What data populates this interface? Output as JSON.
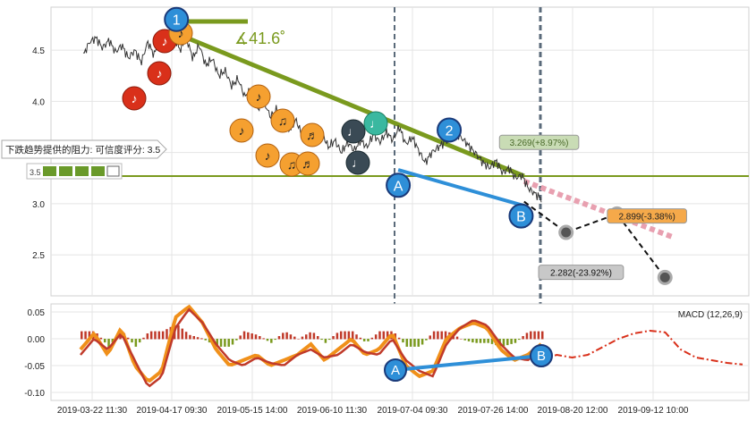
{
  "chart_data": [
    {
      "type": "line",
      "panel": "price",
      "x_ticks": [
        "2019-03-22 11:30",
        "2019-04-17 09:30",
        "2019-05-15 14:00",
        "2019-06-10 11:30",
        "2019-07-04 09:30",
        "2019-07-26 14:00",
        "2019-08-20 12:00",
        "2019-09-12 10:00"
      ],
      "y_ticks": [
        2.5,
        3.0,
        3.5,
        4.0,
        4.5
      ],
      "ylim": [
        2.1,
        4.92
      ],
      "grid": true,
      "series": [
        {
          "values": [
            4.45,
            4.58,
            4.62,
            4.52,
            4.6,
            4.48,
            4.55,
            4.42,
            4.5,
            4.38,
            4.58,
            4.45,
            4.68,
            4.55,
            4.65,
            4.5,
            4.62,
            4.42,
            4.55,
            4.35,
            4.42,
            4.25,
            4.3,
            4.15,
            4.22,
            4.05,
            4.1,
            3.92,
            4.0,
            3.85,
            3.92,
            3.8,
            3.72,
            3.82,
            3.65,
            3.75,
            3.6,
            3.7,
            3.55,
            3.62,
            3.5,
            3.6,
            3.52,
            3.62,
            3.55,
            3.68,
            3.6,
            3.7,
            3.62,
            3.75,
            3.58,
            3.65,
            3.52,
            3.4,
            3.5,
            3.55,
            3.6,
            3.65,
            3.68,
            3.62,
            3.55,
            3.48,
            3.4,
            3.35,
            3.42,
            3.3,
            3.35,
            3.25,
            3.28,
            3.15,
            3.1,
            3.05
          ]
        }
      ],
      "projections": [
        {
          "x": [
            3.3,
            14.8
          ],
          "y": [
            4.65,
            3.27
          ],
          "color": "#7a9a1e"
        },
        {
          "x": [
            10.6,
            14.8
          ],
          "y": [
            3.33,
            2.98
          ],
          "color": "#2e8fd8"
        },
        {
          "x": [
            14.8,
            16.2,
            17.9,
            19.5
          ],
          "y": [
            3.02,
            2.72,
            2.9,
            2.28
          ],
          "color": "#111111"
        },
        {
          "x": [
            14.8,
            19.8
          ],
          "y": [
            3.22,
            2.67
          ],
          "color": "#e8a0b0"
        }
      ],
      "support_level": 3.27,
      "support_label": "下跌趋势提供的阻力: 可信度评分: 3.5",
      "support_rating": "3.5",
      "angle_label": "∡41.6˚",
      "wave_labels": [
        {
          "text": "1",
          "x": 3.2,
          "y": 4.8,
          "color": "#2e8fd8"
        },
        {
          "text": "2",
          "x": 12.3,
          "y": 3.72,
          "color": "#2e8fd8"
        },
        {
          "text": "A",
          "x": 10.6,
          "y": 3.18,
          "color": "#2e8fd8"
        },
        {
          "text": "B",
          "x": 14.7,
          "y": 2.88,
          "color": "#2e8fd8"
        }
      ],
      "annotations": [
        {
          "text": "3.269(+8.97%)",
          "x": 15.3,
          "y": 3.6,
          "bg": "#c9dcb5",
          "fg": "#4a6a2a"
        },
        {
          "text": "2.899(-3.38%)",
          "x": 18.9,
          "y": 2.88,
          "bg": "#f5a94a",
          "fg": "#222222"
        },
        {
          "text": "2.282(-23.92%)",
          "x": 16.7,
          "y": 2.33,
          "bg": "#c8c8c8",
          "fg": "#111111"
        }
      ]
    },
    {
      "type": "line",
      "panel": "macd",
      "title": "MACD (12,26,9)",
      "y_ticks": [
        0.05,
        0.0,
        -0.05,
        -0.1
      ],
      "ylim": [
        -0.115,
        0.065
      ],
      "series": [
        {
          "values": [
            -0.02,
            0.01,
            -0.03,
            0.02,
            -0.05,
            -0.08,
            -0.06,
            0.04,
            0.06,
            0.03,
            -0.02,
            -0.05,
            -0.04,
            -0.03,
            -0.05,
            -0.04,
            -0.03,
            -0.01,
            -0.04,
            -0.02,
            0.0,
            -0.03,
            -0.02,
            0.01,
            -0.05,
            -0.07,
            -0.06,
            0.0,
            0.02,
            0.03,
            0.02,
            -0.02,
            -0.04,
            -0.03,
            -0.01
          ]
        },
        {
          "values": [
            -0.03,
            0.0,
            -0.02,
            0.01,
            -0.04,
            -0.09,
            -0.07,
            0.02,
            0.055,
            0.03,
            -0.01,
            -0.04,
            -0.05,
            -0.035,
            -0.045,
            -0.05,
            -0.03,
            -0.02,
            -0.035,
            -0.03,
            -0.01,
            -0.025,
            -0.03,
            0.0,
            -0.04,
            -0.06,
            -0.07,
            -0.01,
            0.02,
            0.035,
            0.025,
            -0.01,
            -0.035,
            -0.04,
            -0.02
          ]
        },
        {
          "values": [
            -0.04,
            -0.03,
            -0.035,
            -0.03,
            -0.015,
            0.0,
            0.01,
            0.015,
            0.012,
            -0.02,
            -0.035,
            -0.04,
            -0.045,
            -0.048
          ]
        }
      ],
      "wave_labels": [
        {
          "text": "A",
          "color": "#2e8fd8"
        },
        {
          "text": "B",
          "color": "#2e8fd8"
        }
      ]
    }
  ]
}
